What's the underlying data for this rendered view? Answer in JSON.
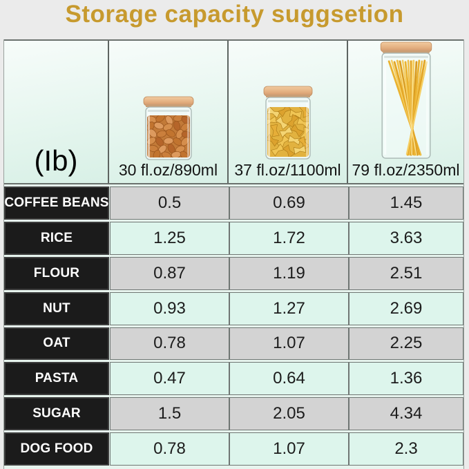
{
  "title": "Storage capacity suggsetion",
  "unit_label": "(Ib)",
  "columns": [
    {
      "jar_icon": "almond-jar-icon",
      "capacity_label": "30 fl.oz/890ml"
    },
    {
      "jar_icon": "farfalle-jar-icon",
      "capacity_label": "37 fl.oz/1100ml"
    },
    {
      "jar_icon": "spaghetti-jar-icon",
      "capacity_label": "79 fl.oz/2350ml"
    }
  ],
  "rows": [
    {
      "label": "COFFEE BEANS",
      "values": [
        "0.5",
        "0.69",
        "1.45"
      ]
    },
    {
      "label": "RICE",
      "values": [
        "1.25",
        "1.72",
        "3.63"
      ]
    },
    {
      "label": "FLOUR",
      "values": [
        "0.87",
        "1.19",
        "2.51"
      ]
    },
    {
      "label": "NUT",
      "values": [
        "0.93",
        "1.27",
        "2.69"
      ]
    },
    {
      "label": "OAT",
      "values": [
        "0.78",
        "1.07",
        "2.25"
      ]
    },
    {
      "label": "PASTA",
      "values": [
        "0.47",
        "0.64",
        "1.36"
      ]
    },
    {
      "label": "SUGAR",
      "values": [
        "1.5",
        "2.05",
        "4.34"
      ]
    },
    {
      "label": "DOG FOOD",
      "values": [
        "0.78",
        "1.07",
        "2.3"
      ]
    }
  ],
  "colors": {
    "title": "#c79a2e",
    "page_background": "#ebebeb",
    "header_mint": "#ddf2e9",
    "row_gray": "#d3d3d3",
    "row_mint": "#ddf5ec",
    "label_cell_black": "#1b1b1b",
    "lid_wood": "#e2ae7f"
  },
  "chart_data": {
    "type": "table",
    "title": "Storage capacity suggsetion",
    "unit": "Ib",
    "columns": [
      "30 fl.oz/890ml",
      "37 fl.oz/1100ml",
      "79 fl.oz/2350ml"
    ],
    "row_labels": [
      "COFFEE BEANS",
      "RICE",
      "FLOUR",
      "NUT",
      "OAT",
      "PASTA",
      "SUGAR",
      "DOG FOOD"
    ],
    "values": [
      [
        0.5,
        0.69,
        1.45
      ],
      [
        1.25,
        1.72,
        3.63
      ],
      [
        0.87,
        1.19,
        2.51
      ],
      [
        0.93,
        1.27,
        2.69
      ],
      [
        0.78,
        1.07,
        2.25
      ],
      [
        0.47,
        0.64,
        1.36
      ],
      [
        1.5,
        2.05,
        4.34
      ],
      [
        0.78,
        1.07,
        2.3
      ]
    ]
  }
}
